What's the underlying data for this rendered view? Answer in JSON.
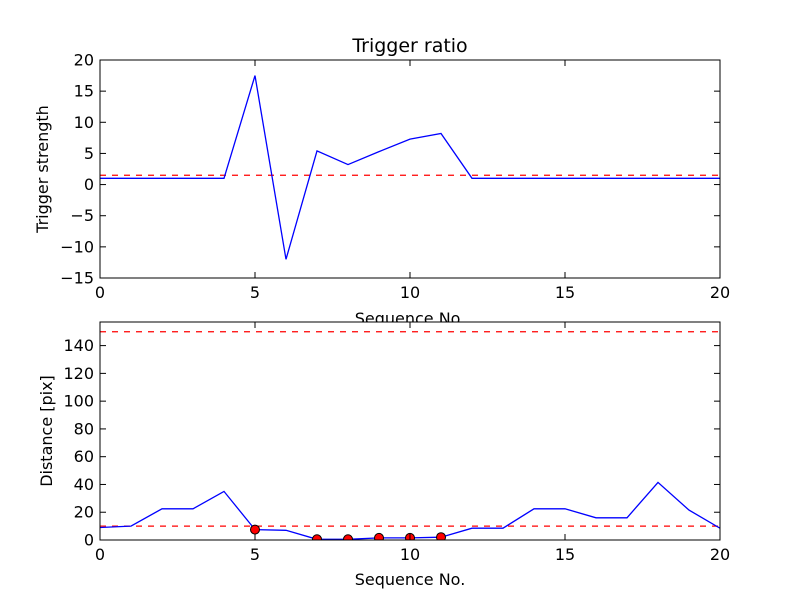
{
  "chart_data": [
    {
      "type": "line",
      "title": "Trigger ratio",
      "xlabel": "Sequence No.",
      "ylabel": "Trigger strength",
      "xlim": [
        0,
        20
      ],
      "ylim": [
        -15,
        20
      ],
      "xticks": [
        0,
        5,
        10,
        15,
        20
      ],
      "yticks": [
        -15,
        -10,
        -5,
        0,
        5,
        10,
        15,
        20
      ],
      "grid": false,
      "series": [
        {
          "color": "#0000ff",
          "style": "solid",
          "x": [
            0,
            1,
            2,
            3,
            4,
            5,
            6,
            7,
            8,
            9,
            10,
            11,
            12,
            13,
            14,
            15,
            16,
            17,
            18,
            19,
            20
          ],
          "y": [
            1,
            1,
            1,
            1,
            1,
            17.5,
            -12,
            5.4,
            3.2,
            5.3,
            7.3,
            8.2,
            1,
            1,
            1,
            1,
            1,
            1,
            1,
            1,
            1
          ]
        }
      ],
      "hlines": [
        {
          "y": 1.5,
          "color": "#ff0000",
          "style": "dashed"
        }
      ]
    },
    {
      "type": "line",
      "title": "",
      "xlabel": "Sequence No.",
      "ylabel": "Distance [pix]",
      "xlim": [
        0,
        20
      ],
      "ylim": [
        0,
        157
      ],
      "xticks": [
        0,
        5,
        10,
        15,
        20
      ],
      "yticks": [
        0,
        20,
        40,
        60,
        80,
        100,
        120,
        140
      ],
      "grid": false,
      "series": [
        {
          "color": "#0000ff",
          "style": "solid",
          "x": [
            0,
            1,
            2,
            3,
            4,
            5,
            6,
            7,
            8,
            9,
            10,
            11,
            12,
            13,
            14,
            15,
            16,
            17,
            18,
            19,
            20
          ],
          "y": [
            9,
            10,
            22.5,
            22.5,
            35,
            7.5,
            7,
            0.5,
            0.5,
            1.5,
            1.5,
            2,
            8.5,
            8.5,
            22.5,
            22.5,
            16,
            16,
            41.5,
            21.5,
            8.5
          ]
        },
        {
          "color": "#ff0000",
          "style": "markers",
          "x": [
            5,
            7,
            8,
            9,
            10,
            11
          ],
          "y": [
            7.5,
            0.5,
            0.5,
            1.5,
            1.5,
            2
          ]
        }
      ],
      "hlines": [
        {
          "y": 10,
          "color": "#ff0000",
          "style": "dashed"
        },
        {
          "y": 150,
          "color": "#ff0000",
          "style": "dashed"
        }
      ]
    }
  ]
}
